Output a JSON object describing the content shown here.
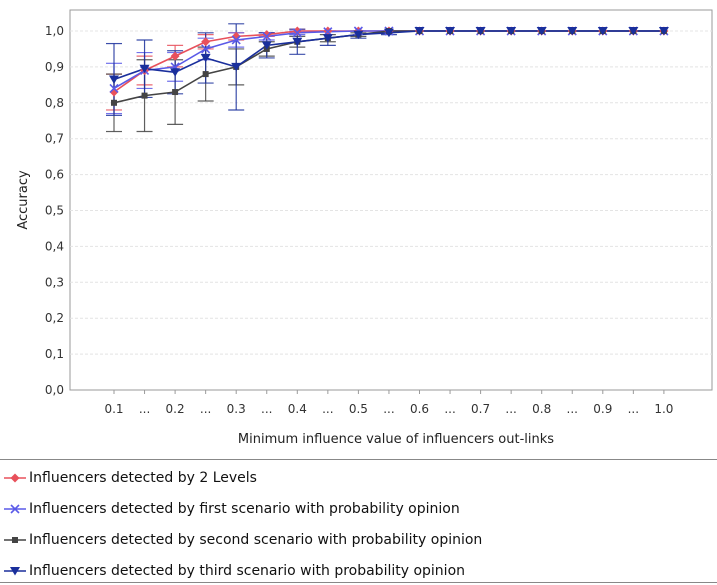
{
  "chart_data": {
    "type": "line",
    "ylabel": "Accuracy",
    "xlabel": "Minimum influence value of influencers out-links",
    "ylim": [
      0.0,
      1.05
    ],
    "yticks": [
      "0,0",
      "0,1",
      "0,2",
      "0,3",
      "0,4",
      "0,5",
      "0,6",
      "0,7",
      "0,8",
      "0,9",
      "1,0"
    ],
    "categories": [
      "0.1",
      "...",
      "0.2",
      "...",
      "0.3",
      "...",
      "0.4",
      "...",
      "0.5",
      "...",
      "0.6",
      "...",
      "0.7",
      "...",
      "0.8",
      "...",
      "0.9",
      "...",
      "1.0"
    ],
    "grid": true,
    "legend_position": "bottom",
    "series": [
      {
        "name": "Influencers detected by 2 Levels",
        "color": "#e8505b",
        "marker": "diamond",
        "values": [
          0.83,
          0.89,
          0.93,
          0.97,
          0.985,
          0.99,
          1.0,
          1.0,
          1.0,
          1.0,
          1.0,
          1.0,
          1.0,
          1.0,
          1.0,
          1.0,
          1.0,
          1.0,
          1.0
        ],
        "error": [
          0.05,
          0.04,
          0.03,
          0.02,
          0.01,
          0.005,
          0.005,
          0,
          0,
          0,
          0,
          0,
          0,
          0,
          0,
          0,
          0,
          0,
          0
        ]
      },
      {
        "name": "Influencers detected by first scenario with probability opinion",
        "color": "#5a5ae8",
        "marker": "cross",
        "values": [
          0.84,
          0.89,
          0.9,
          0.95,
          0.975,
          0.985,
          0.995,
          0.998,
          1.0,
          1.0,
          1.0,
          1.0,
          1.0,
          1.0,
          1.0,
          1.0,
          1.0,
          1.0,
          1.0
        ],
        "error": [
          0.07,
          0.05,
          0.04,
          0.03,
          0.02,
          0.01,
          0.005,
          0,
          0,
          0,
          0,
          0,
          0,
          0,
          0,
          0,
          0,
          0,
          0
        ]
      },
      {
        "name": "Influencers detected by second scenario with probability opinion",
        "color": "#444444",
        "marker": "square",
        "values": [
          0.8,
          0.82,
          0.83,
          0.88,
          0.9,
          0.95,
          0.97,
          0.98,
          0.99,
          1.0,
          1.0,
          1.0,
          1.0,
          1.0,
          1.0,
          1.0,
          1.0,
          1.0,
          1.0
        ],
        "error": [
          0.08,
          0.1,
          0.09,
          0.075,
          0.05,
          0.02,
          0.015,
          0.01,
          0.005,
          0,
          0,
          0,
          0,
          0,
          0,
          0,
          0,
          0,
          0
        ]
      },
      {
        "name": "Influencers detected by third scenario with probability opinion",
        "color": "#1a2f9c",
        "marker": "triangle-down",
        "values": [
          0.865,
          0.895,
          0.885,
          0.925,
          0.9,
          0.96,
          0.97,
          0.98,
          0.99,
          0.995,
          1.0,
          1.0,
          1.0,
          1.0,
          1.0,
          1.0,
          1.0,
          1.0,
          1.0
        ],
        "error": [
          0.1,
          0.08,
          0.06,
          0.07,
          0.12,
          0.035,
          0.035,
          0.02,
          0.01,
          0.005,
          0,
          0,
          0,
          0,
          0,
          0,
          0,
          0,
          0
        ]
      }
    ]
  }
}
